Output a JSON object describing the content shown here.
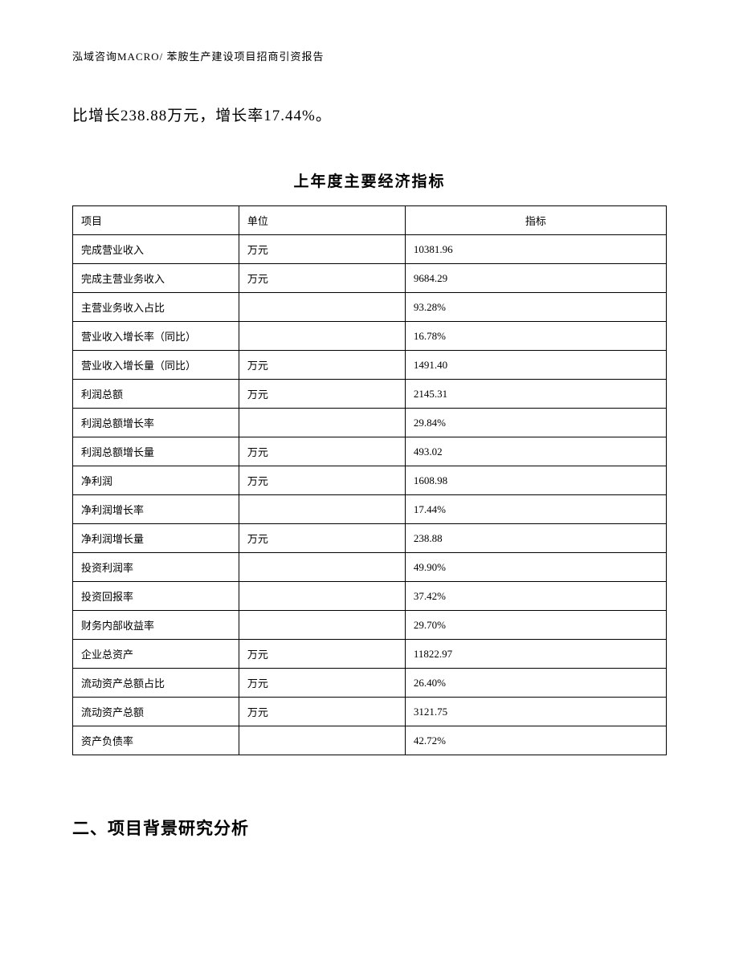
{
  "header": {
    "text": "泓域咨询MACRO/ 苯胺生产建设项目招商引资报告"
  },
  "intro": {
    "text": "比增长238.88万元，增长率17.44%。"
  },
  "table": {
    "title": "上年度主要经济指标",
    "columns": {
      "project": "项目",
      "unit": "单位",
      "indicator": "指标"
    },
    "rows": [
      {
        "project": "完成营业收入",
        "unit": "万元",
        "indicator": "10381.96"
      },
      {
        "project": "完成主营业务收入",
        "unit": "万元",
        "indicator": "9684.29"
      },
      {
        "project": "主营业务收入占比",
        "unit": "",
        "indicator": "93.28%"
      },
      {
        "project": "营业收入增长率（同比）",
        "unit": "",
        "indicator": "16.78%"
      },
      {
        "project": "营业收入增长量（同比）",
        "unit": "万元",
        "indicator": "1491.40"
      },
      {
        "project": "利润总额",
        "unit": "万元",
        "indicator": "2145.31"
      },
      {
        "project": "利润总额增长率",
        "unit": "",
        "indicator": "29.84%"
      },
      {
        "project": "利润总额增长量",
        "unit": "万元",
        "indicator": "493.02"
      },
      {
        "project": "净利润",
        "unit": "万元",
        "indicator": "1608.98"
      },
      {
        "project": "净利润增长率",
        "unit": "",
        "indicator": "17.44%"
      },
      {
        "project": "净利润增长量",
        "unit": "万元",
        "indicator": "238.88"
      },
      {
        "project": "投资利润率",
        "unit": "",
        "indicator": "49.90%"
      },
      {
        "project": "投资回报率",
        "unit": "",
        "indicator": "37.42%"
      },
      {
        "project": "财务内部收益率",
        "unit": "",
        "indicator": "29.70%"
      },
      {
        "project": "企业总资产",
        "unit": "万元",
        "indicator": "11822.97"
      },
      {
        "project": "流动资产总额占比",
        "unit": "万元",
        "indicator": "26.40%"
      },
      {
        "project": "流动资产总额",
        "unit": "万元",
        "indicator": "3121.75"
      },
      {
        "project": "资产负债率",
        "unit": "",
        "indicator": "42.72%"
      }
    ]
  },
  "section": {
    "heading": "二、项目背景研究分析"
  }
}
